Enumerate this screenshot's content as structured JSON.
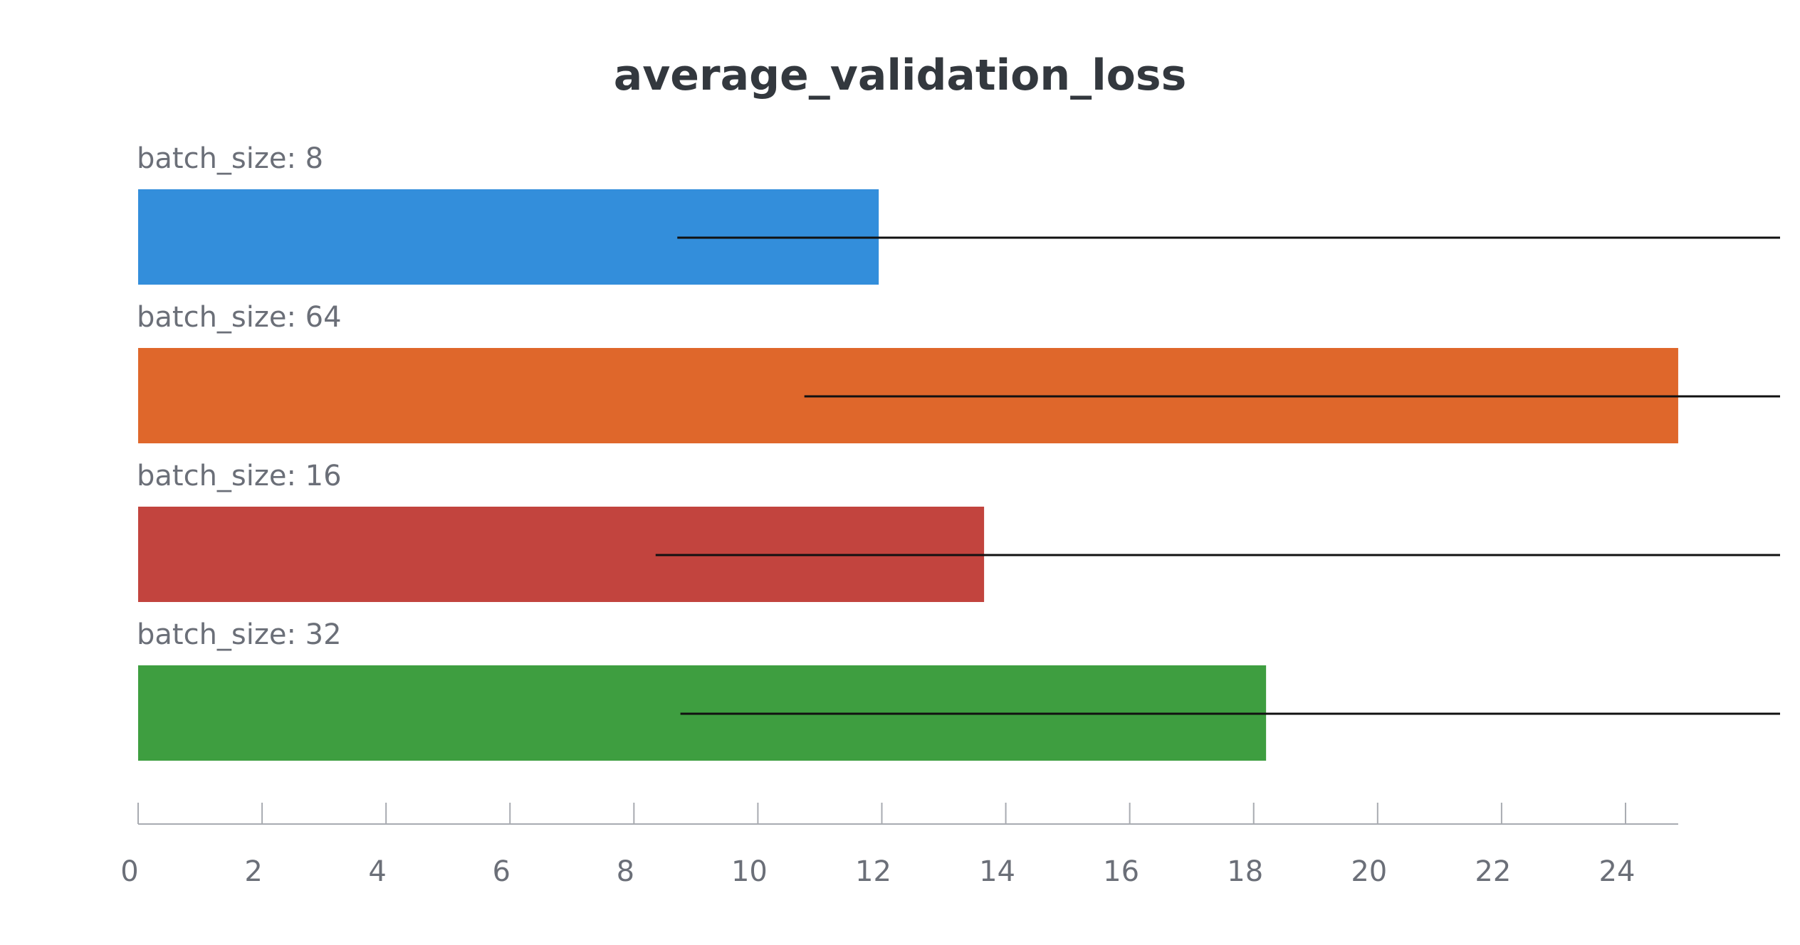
{
  "chart_data": {
    "type": "bar",
    "orientation": "horizontal",
    "title": "average_validation_loss",
    "xlabel": "",
    "ylabel": "",
    "xlim": [
      0,
      26.5
    ],
    "grid": false,
    "legend": "none",
    "categories": [
      "batch_size: 8",
      "batch_size: 64",
      "batch_size: 16",
      "batch_size: 32"
    ],
    "values": [
      11.95,
      24.85,
      13.65,
      18.2
    ],
    "colors": [
      "#338edb",
      "#df672b",
      "#c2443e",
      "#3e9e40"
    ],
    "error_ranges": [
      [
        8.7,
        26.5
      ],
      [
        10.75,
        26.5
      ],
      [
        8.35,
        26.5
      ],
      [
        8.75,
        26.5
      ]
    ],
    "x_ticks": [
      0,
      2,
      4,
      6,
      8,
      10,
      12,
      14,
      16,
      18,
      20,
      22,
      24
    ]
  }
}
